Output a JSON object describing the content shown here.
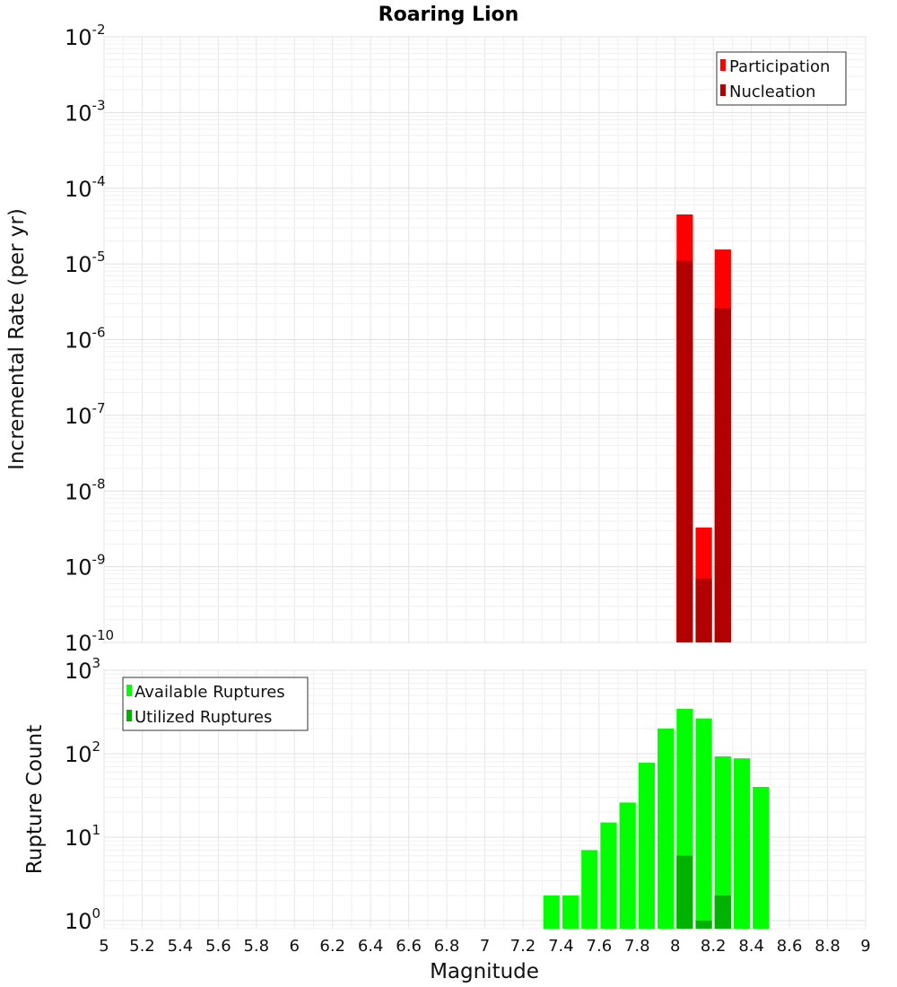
{
  "chart_data": [
    {
      "type": "bar",
      "title": "Roaring Lion",
      "ylabel": "Incremental Rate (per yr)",
      "yscale": "log",
      "ylim": [
        1e-10,
        0.01
      ],
      "xlim": [
        5,
        9
      ],
      "y_tick_exponents": [
        -10,
        -9,
        -8,
        -7,
        -6,
        -5,
        -4,
        -3,
        -2
      ],
      "grid": true,
      "legend_position": "top-right",
      "series": [
        {
          "name": "Participation",
          "color": "#ff0000",
          "x": [
            8.05,
            8.15,
            8.25
          ],
          "values": [
            4.5e-05,
            3.3e-09,
            1.55e-05
          ]
        },
        {
          "name": "Nucleation",
          "color": "#b20000",
          "x": [
            8.05,
            8.15,
            8.25
          ],
          "values": [
            1.1e-05,
            7e-10,
            2.6e-06
          ]
        }
      ]
    },
    {
      "type": "bar",
      "ylabel": "Rupture Count",
      "xlabel": "Magnitude",
      "yscale": "log",
      "ylim": [
        0.8,
        1000
      ],
      "xlim": [
        5,
        9
      ],
      "y_tick_exponents": [
        0,
        1,
        2,
        3
      ],
      "x_ticks": [
        "5",
        "5.2",
        "5.4",
        "5.6",
        "5.8",
        "6",
        "6.2",
        "6.4",
        "6.6",
        "6.8",
        "7",
        "7.2",
        "7.4",
        "7.6",
        "7.8",
        "8",
        "8.2",
        "8.4",
        "8.6",
        "8.8",
        "9"
      ],
      "grid": true,
      "legend_position": "top-left",
      "series": [
        {
          "name": "Available Ruptures",
          "color": "#00ff00",
          "x": [
            7.35,
            7.45,
            7.55,
            7.65,
            7.75,
            7.85,
            7.95,
            8.05,
            8.15,
            8.25,
            8.35,
            8.45
          ],
          "values": [
            2,
            2,
            7,
            15,
            26,
            78,
            200,
            345,
            265,
            93,
            88,
            40
          ]
        },
        {
          "name": "Utilized Ruptures",
          "color": "#00b200",
          "x": [
            8.05,
            8.15,
            8.25
          ],
          "values": [
            6,
            1,
            2
          ]
        }
      ]
    }
  ]
}
